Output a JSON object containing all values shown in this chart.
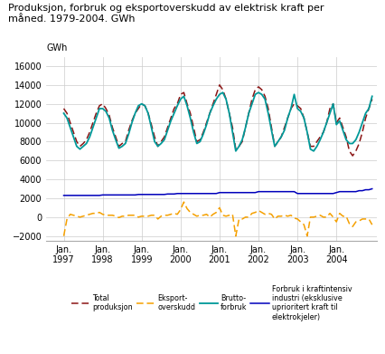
{
  "title": "Produksjon, forbruk og eksportoverskudd av elektrisk kraft per\nmåned. 1979-2004. GWh",
  "ylabel": "GWh",
  "ylim": [
    -2500,
    17000
  ],
  "yticks": [
    -2000,
    0,
    2000,
    4000,
    6000,
    8000,
    10000,
    12000,
    14000,
    16000
  ],
  "x_tick_years": [
    1997,
    1998,
    1999,
    2000,
    2001,
    2002,
    2003,
    2004
  ],
  "xlim": [
    1996.55,
    2005.05
  ],
  "colors": {
    "produksjon": "#8B1515",
    "eksport": "#F5A000",
    "brutto": "#009999",
    "industri": "#0000BB"
  },
  "background_color": "#ffffff",
  "grid_color": "#cccccc",
  "produksjon": [
    11500,
    11000,
    10000,
    9000,
    8000,
    7500,
    7800,
    8200,
    9000,
    10000,
    11000,
    11800,
    12000,
    11500,
    10800,
    9500,
    8500,
    7500,
    7800,
    8000,
    9200,
    10200,
    11000,
    11500,
    12000,
    11800,
    11000,
    9800,
    8500,
    7500,
    8000,
    8500,
    9500,
    10500,
    11500,
    12000,
    13000,
    13200,
    12000,
    11000,
    9500,
    8000,
    8200,
    9000,
    10000,
    11000,
    12000,
    13000,
    14000,
    13500,
    12500,
    11000,
    9500,
    7200,
    7500,
    8000,
    9500,
    11000,
    12500,
    13500,
    13800,
    13500,
    12800,
    11500,
    9500,
    7500,
    8000,
    8500,
    9500,
    10500,
    11500,
    12000,
    11800,
    11500,
    10500,
    9000,
    7500,
    7500,
    8000,
    8500,
    9000,
    10000,
    11500,
    12000,
    10000,
    10500,
    9500,
    8500,
    7000,
    6500,
    7000,
    7800,
    9000,
    10500,
    11500,
    12500
  ],
  "brutto": [
    11000,
    10500,
    9500,
    8500,
    7500,
    7200,
    7500,
    7800,
    8500,
    9500,
    10500,
    11500,
    11500,
    11200,
    10500,
    9200,
    8200,
    7300,
    7500,
    7800,
    8800,
    10000,
    11000,
    11800,
    12000,
    11800,
    11000,
    9500,
    8000,
    7500,
    7800,
    8200,
    9200,
    10200,
    11000,
    11800,
    12500,
    12800,
    11800,
    10500,
    9000,
    7800,
    8000,
    8800,
    9800,
    11000,
    11800,
    12500,
    13000,
    13200,
    12500,
    11000,
    9000,
    7000,
    7500,
    8200,
    9500,
    11000,
    12000,
    13000,
    13200,
    13000,
    12500,
    11000,
    9200,
    7500,
    8000,
    8500,
    9200,
    10500,
    11500,
    13000,
    11500,
    11200,
    10500,
    9000,
    7200,
    7000,
    7500,
    8200,
    9000,
    10000,
    11000,
    12000,
    9800,
    10200,
    9200,
    8200,
    7800,
    7800,
    8200,
    9000,
    10000,
    11000,
    11500,
    12800
  ],
  "eksport": [
    -2000,
    -200,
    300,
    200,
    100,
    0,
    100,
    200,
    300,
    400,
    400,
    500,
    300,
    200,
    200,
    200,
    100,
    -50,
    100,
    100,
    200,
    200,
    200,
    0,
    100,
    100,
    100,
    200,
    200,
    -200,
    100,
    200,
    200,
    300,
    400,
    300,
    800,
    1600,
    900,
    500,
    300,
    100,
    200,
    200,
    300,
    0,
    300,
    500,
    1000,
    200,
    100,
    200,
    300,
    -2000,
    -200,
    -200,
    0,
    0,
    400,
    500,
    700,
    500,
    300,
    400,
    300,
    -200,
    100,
    100,
    200,
    100,
    200,
    -100,
    -200,
    -500,
    -800,
    -2000,
    0,
    0,
    100,
    200,
    0,
    0,
    400,
    0,
    -500,
    400,
    100,
    100,
    -700,
    -1000,
    -500,
    -400,
    -200,
    -200,
    -200,
    -800
  ],
  "industri": [
    2300,
    2300,
    2300,
    2300,
    2300,
    2300,
    2300,
    2300,
    2300,
    2300,
    2300,
    2300,
    2350,
    2350,
    2350,
    2350,
    2350,
    2350,
    2350,
    2350,
    2350,
    2350,
    2350,
    2400,
    2400,
    2400,
    2400,
    2400,
    2400,
    2400,
    2400,
    2400,
    2450,
    2450,
    2450,
    2500,
    2500,
    2500,
    2500,
    2500,
    2500,
    2500,
    2500,
    2500,
    2500,
    2500,
    2500,
    2500,
    2600,
    2600,
    2600,
    2600,
    2600,
    2600,
    2600,
    2600,
    2600,
    2600,
    2600,
    2600,
    2700,
    2700,
    2700,
    2700,
    2700,
    2700,
    2700,
    2700,
    2700,
    2700,
    2700,
    2700,
    2500,
    2500,
    2500,
    2500,
    2500,
    2500,
    2500,
    2500,
    2500,
    2500,
    2500,
    2500,
    2600,
    2700,
    2700,
    2700,
    2700,
    2700,
    2700,
    2800,
    2800,
    2900,
    2900,
    3000
  ]
}
